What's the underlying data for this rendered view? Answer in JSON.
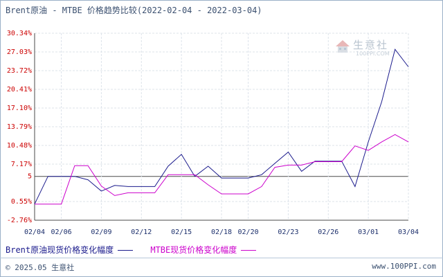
{
  "title": "Brent原油 - MTBE 价格趋势比较(2022-02-04 - 2022-03-04)",
  "legend": {
    "series1": "Brent原油现货价格变化幅度",
    "series2": "MTBE现货价格变化幅度"
  },
  "footer": {
    "copyright": "© 2025.05 生意社",
    "url": "www.100PPI.com"
  },
  "watermark": {
    "name": "生意社",
    "url": "100PPI.COM"
  },
  "colors": {
    "series1": "#1a1a8c",
    "series2": "#cc00cc",
    "ytick": "#cc0000",
    "xtick": "#1b2e6b"
  },
  "chart_data": {
    "type": "line",
    "title": "Brent原油 - MTBE 价格趋势比较(2022-02-04 - 2022-03-04)",
    "yticks": [
      {
        "value": 30.34,
        "label": "30.34%"
      },
      {
        "value": 27.03,
        "label": "27.03%"
      },
      {
        "value": 23.72,
        "label": "23.72%"
      },
      {
        "value": 20.41,
        "label": "20.41%"
      },
      {
        "value": 17.1,
        "label": "17.10%"
      },
      {
        "value": 13.79,
        "label": "13.79%"
      },
      {
        "value": 10.48,
        "label": "10.48%"
      },
      {
        "value": 7.17,
        "label": "7.17%"
      },
      {
        "value": 5.0,
        "label": "5"
      },
      {
        "value": 0.55,
        "label": "0.55%"
      },
      {
        "value": -2.76,
        "label": "-2.76%"
      }
    ],
    "ylim": [
      -2.76,
      30.34
    ],
    "xticks": [
      "02/04",
      "02/06",
      "02/09",
      "02/12",
      "02/15",
      "02/18",
      "02/20",
      "02/23",
      "02/26",
      "03/01",
      "03/04"
    ],
    "x": [
      "02/04",
      "02/05",
      "02/06",
      "02/07",
      "02/08",
      "02/09",
      "02/10",
      "02/11",
      "02/12",
      "02/13",
      "02/14",
      "02/15",
      "02/16",
      "02/17",
      "02/18",
      "02/19",
      "02/20",
      "02/21",
      "02/22",
      "02/23",
      "02/24",
      "02/25",
      "02/26",
      "02/27",
      "02/28",
      "03/01",
      "03/02",
      "03/03",
      "03/04"
    ],
    "series": [
      {
        "name": "Brent原油现货价格变化幅度",
        "values": [
          0.1,
          5.0,
          5.0,
          5.0,
          4.4,
          2.4,
          3.4,
          3.2,
          3.2,
          3.2,
          6.8,
          8.9,
          5.0,
          6.8,
          4.7,
          4.7,
          4.7,
          5.3,
          7.3,
          9.3,
          5.9,
          7.7,
          7.7,
          7.7,
          3.2,
          11.1,
          18.2,
          27.5,
          24.4
        ]
      },
      {
        "name": "MTBE现货价格变化幅度",
        "values": [
          0.1,
          0.1,
          0.1,
          6.9,
          6.9,
          3.3,
          1.6,
          2.1,
          2.1,
          2.1,
          5.3,
          5.3,
          5.3,
          3.5,
          1.9,
          1.9,
          1.9,
          3.2,
          6.6,
          7.0,
          7.0,
          7.6,
          7.6,
          7.6,
          10.4,
          9.6,
          11.1,
          12.4,
          11.1
        ]
      }
    ]
  }
}
